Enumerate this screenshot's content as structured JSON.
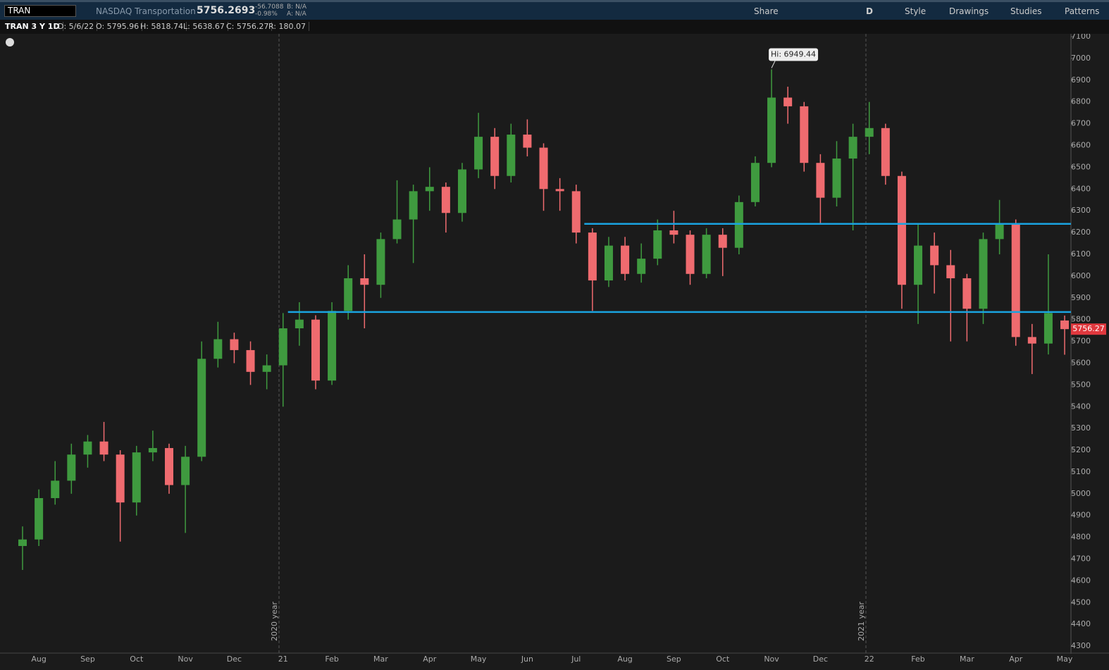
{
  "header": {
    "symbol": "TRAN",
    "description": "NASDAQ Transportation",
    "last": "5756.2693",
    "change": "-56.7088",
    "change_pct": "-0.98%",
    "bid": "B: N/A",
    "ask": "A: N/A",
    "buttons": [
      "Share",
      "D",
      "Style",
      "Drawings",
      "Studies",
      "Patterns"
    ],
    "info": [
      "TRAN 3 Y 1D",
      "D: 5/6/22",
      "O: 5795.96",
      "H: 5818.74",
      "L: 5638.67",
      "C: 5756.27",
      "R: 180.07"
    ]
  },
  "chart_data": {
    "type": "candlestick",
    "categories": [
      null,
      "Aug",
      null,
      null,
      "Sep",
      null,
      null,
      "Oct",
      null,
      null,
      "Nov",
      null,
      null,
      "Dec",
      null,
      null,
      "21",
      null,
      null,
      "Feb",
      null,
      null,
      "Mar",
      null,
      null,
      "Apr",
      null,
      null,
      "May",
      null,
      null,
      "Jun",
      null,
      null,
      "Jul",
      null,
      null,
      "Aug",
      null,
      null,
      "Sep",
      null,
      null,
      "Oct",
      null,
      null,
      "Nov",
      null,
      null,
      "Dec",
      null,
      null,
      "22",
      null,
      null,
      "Feb",
      null,
      null,
      "Mar",
      null,
      null,
      "Apr",
      null,
      null,
      "May"
    ],
    "open": [
      4760,
      4790,
      4980,
      5060,
      5180,
      5240,
      5180,
      4960,
      5190,
      5210,
      5040,
      5170,
      5620,
      5710,
      5660,
      5560,
      5590,
      5760,
      5800,
      5520,
      5840,
      5990,
      5960,
      6170,
      6260,
      6390,
      6410,
      6290,
      6490,
      6640,
      6460,
      6650,
      6590,
      6400,
      6390,
      6200,
      5980,
      6140,
      6010,
      6080,
      6210,
      6190,
      6010,
      6190,
      6130,
      6340,
      6520,
      6820,
      6780,
      6520,
      6360,
      6540,
      6640,
      6680,
      6460,
      5960,
      6140,
      6050,
      5990,
      5850,
      6170,
      6240,
      5720,
      5690,
      5795.96
    ],
    "high": [
      4850,
      5020,
      5150,
      5230,
      5270,
      5330,
      5200,
      5220,
      5290,
      5230,
      5220,
      5700,
      5790,
      5740,
      5700,
      5640,
      5830,
      5880,
      5820,
      5880,
      6050,
      6100,
      6200,
      6440,
      6420,
      6500,
      6430,
      6520,
      6750,
      6680,
      6700,
      6720,
      6610,
      6450,
      6420,
      6220,
      6180,
      6180,
      6150,
      6260,
      6300,
      6210,
      6220,
      6220,
      6370,
      6550,
      6949.44,
      6870,
      6800,
      6560,
      6620,
      6700,
      6800,
      6700,
      6480,
      6240,
      6200,
      6120,
      6010,
      6200,
      6350,
      6260,
      5780,
      6100,
      5818.74
    ],
    "low": [
      4650,
      4760,
      4950,
      5000,
      5120,
      5150,
      4780,
      4900,
      5150,
      5000,
      4820,
      5150,
      5580,
      5600,
      5500,
      5480,
      5400,
      5680,
      5480,
      5500,
      5800,
      5760,
      5900,
      6150,
      6060,
      6300,
      6200,
      6250,
      6450,
      6400,
      6430,
      6550,
      6300,
      6300,
      6150,
      5840,
      5950,
      5980,
      5970,
      6050,
      6150,
      5960,
      5990,
      6000,
      6100,
      6320,
      6500,
      6700,
      6480,
      6240,
      6320,
      6210,
      6560,
      6420,
      5850,
      5780,
      5920,
      5700,
      5700,
      5780,
      6100,
      5680,
      5550,
      5640,
      5638.67
    ],
    "close": [
      4790,
      4980,
      5060,
      5180,
      5240,
      5180,
      4960,
      5190,
      5210,
      5040,
      5170,
      5620,
      5710,
      5660,
      5560,
      5590,
      5760,
      5800,
      5520,
      5840,
      5990,
      5960,
      6170,
      6260,
      6390,
      6410,
      6290,
      6490,
      6640,
      6460,
      6650,
      6590,
      6400,
      6390,
      6200,
      5980,
      6140,
      6010,
      6080,
      6210,
      6190,
      6010,
      6190,
      6130,
      6340,
      6520,
      6820,
      6780,
      6520,
      6360,
      6540,
      6640,
      6680,
      6460,
      5960,
      6140,
      6050,
      5990,
      5850,
      6170,
      6240,
      5720,
      5690,
      5830,
      5756.27
    ],
    "up_color": "#3f9a3f",
    "down_color": "#ef6b6f",
    "line_color": "#1aa3e0",
    "hlines": [
      6240,
      5835
    ],
    "year_markers": [
      "2020 year",
      "2021 year"
    ],
    "high_annotation": "Hi: 6949.44",
    "ylim": [
      4268,
      7113
    ],
    "yticks": [
      4300,
      4400,
      4500,
      4600,
      4700,
      4800,
      4900,
      5000,
      5100,
      5200,
      5300,
      5400,
      5500,
      5600,
      5700,
      5800,
      5900,
      6000,
      6100,
      6200,
      6300,
      6400,
      6500,
      6600,
      6700,
      6800,
      6900,
      7000,
      7100
    ],
    "grid": false
  }
}
